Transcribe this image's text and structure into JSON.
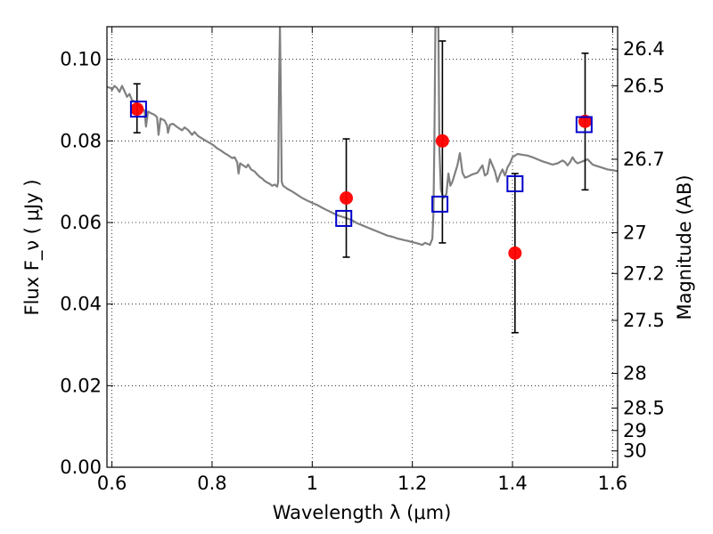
{
  "chart_data": {
    "type": "scatter",
    "xlabel": "Wavelength  λ (μm)",
    "ylabel": "Flux  F_ν ( μJy )",
    "ylabel_right": "Magnitude (AB)",
    "xlim": [
      0.59,
      1.61
    ],
    "ylim": [
      0.0,
      0.108
    ],
    "grid": true,
    "x_ticks": [
      {
        "value": 0.6,
        "label": "0.6"
      },
      {
        "value": 0.8,
        "label": "0.8"
      },
      {
        "value": 1.0,
        "label": "1"
      },
      {
        "value": 1.2,
        "label": "1.2"
      },
      {
        "value": 1.4,
        "label": "1.4"
      },
      {
        "value": 1.6,
        "label": "1.6"
      }
    ],
    "y_ticks": [
      {
        "value": 0.0,
        "label": "0.00"
      },
      {
        "value": 0.02,
        "label": "0.02"
      },
      {
        "value": 0.04,
        "label": "0.04"
      },
      {
        "value": 0.06,
        "label": "0.06"
      },
      {
        "value": 0.08,
        "label": "0.08"
      },
      {
        "value": 0.1,
        "label": "0.10"
      }
    ],
    "right_ticks": [
      {
        "flux": 0.1025,
        "label": "26.4"
      },
      {
        "flux": 0.0935,
        "label": "26.5"
      },
      {
        "flux": 0.0755,
        "label": "26.7"
      },
      {
        "flux": 0.0575,
        "label": "27"
      },
      {
        "flux": 0.0475,
        "label": "27.2"
      },
      {
        "flux": 0.036,
        "label": "27.5"
      },
      {
        "flux": 0.023,
        "label": "28"
      },
      {
        "flux": 0.0145,
        "label": "28.5"
      },
      {
        "flux": 0.009,
        "label": "29"
      },
      {
        "flux": 0.004,
        "label": "30"
      }
    ],
    "observed": {
      "color": "#ff0000",
      "points": [
        {
          "x": 0.65,
          "y": 0.0878,
          "err_low": 0.082,
          "err_high": 0.094
        },
        {
          "x": 1.068,
          "y": 0.066,
          "err_low": 0.0515,
          "err_high": 0.0805
        },
        {
          "x": 1.26,
          "y": 0.08,
          "err_low": 0.055,
          "err_high": 0.1045
        },
        {
          "x": 1.405,
          "y": 0.0525,
          "err_low": 0.033,
          "err_high": 0.072
        },
        {
          "x": 1.545,
          "y": 0.0848,
          "err_low": 0.068,
          "err_high": 0.1015
        }
      ]
    },
    "model_points": {
      "color": "#0000cc",
      "points": [
        {
          "x": 0.653,
          "y": 0.0878
        },
        {
          "x": 1.063,
          "y": 0.061
        },
        {
          "x": 1.255,
          "y": 0.0645
        },
        {
          "x": 1.405,
          "y": 0.0695
        },
        {
          "x": 1.543,
          "y": 0.084
        }
      ]
    },
    "spectrum": {
      "color": "#808080",
      "points": [
        [
          0.59,
          0.0932
        ],
        [
          0.598,
          0.093
        ],
        [
          0.6,
          0.0925
        ],
        [
          0.605,
          0.0935
        ],
        [
          0.61,
          0.093
        ],
        [
          0.615,
          0.092
        ],
        [
          0.62,
          0.0935
        ],
        [
          0.625,
          0.0922
        ],
        [
          0.63,
          0.0908
        ],
        [
          0.635,
          0.0915
        ],
        [
          0.64,
          0.09
        ],
        [
          0.645,
          0.0897
        ],
        [
          0.65,
          0.0893
        ],
        [
          0.655,
          0.0885
        ],
        [
          0.66,
          0.088
        ],
        [
          0.665,
          0.0874
        ],
        [
          0.668,
          0.0835
        ],
        [
          0.672,
          0.0872
        ],
        [
          0.678,
          0.0868
        ],
        [
          0.685,
          0.0864
        ],
        [
          0.69,
          0.0858
        ],
        [
          0.693,
          0.0815
        ],
        [
          0.697,
          0.0855
        ],
        [
          0.705,
          0.085
        ],
        [
          0.71,
          0.0838
        ],
        [
          0.712,
          0.082
        ],
        [
          0.716,
          0.084
        ],
        [
          0.722,
          0.0842
        ],
        [
          0.728,
          0.0836
        ],
        [
          0.735,
          0.083
        ],
        [
          0.74,
          0.0826
        ],
        [
          0.745,
          0.0833
        ],
        [
          0.752,
          0.0827
        ],
        [
          0.76,
          0.0815
        ],
        [
          0.765,
          0.0822
        ],
        [
          0.772,
          0.0812
        ],
        [
          0.78,
          0.0806
        ],
        [
          0.788,
          0.08
        ],
        [
          0.795,
          0.0795
        ],
        [
          0.802,
          0.079
        ],
        [
          0.81,
          0.0782
        ],
        [
          0.818,
          0.0776
        ],
        [
          0.825,
          0.077
        ],
        [
          0.832,
          0.0765
        ],
        [
          0.84,
          0.0758
        ],
        [
          0.845,
          0.076
        ],
        [
          0.85,
          0.0748
        ],
        [
          0.853,
          0.072
        ],
        [
          0.856,
          0.0745
        ],
        [
          0.862,
          0.074
        ],
        [
          0.868,
          0.0735
        ],
        [
          0.872,
          0.0742
        ],
        [
          0.878,
          0.073
        ],
        [
          0.885,
          0.0725
        ],
        [
          0.89,
          0.0718
        ],
        [
          0.895,
          0.0712
        ],
        [
          0.9,
          0.0708
        ],
        [
          0.905,
          0.0702
        ],
        [
          0.91,
          0.0698
        ],
        [
          0.915,
          0.0695
        ],
        [
          0.92,
          0.069
        ],
        [
          0.925,
          0.0693
        ],
        [
          0.93,
          0.0688
        ],
        [
          0.932,
          0.07
        ],
        [
          0.934,
          0.095
        ],
        [
          0.9355,
          0.108
        ],
        [
          0.937,
          0.095
        ],
        [
          0.939,
          0.07
        ],
        [
          0.942,
          0.069
        ],
        [
          0.95,
          0.0683
        ],
        [
          0.96,
          0.0676
        ],
        [
          0.97,
          0.0668
        ],
        [
          0.98,
          0.066
        ],
        [
          0.99,
          0.0654
        ],
        [
          1.0,
          0.0648
        ],
        [
          1.01,
          0.0643
        ],
        [
          1.02,
          0.0636
        ],
        [
          1.03,
          0.063
        ],
        [
          1.04,
          0.0624
        ],
        [
          1.05,
          0.0618
        ],
        [
          1.06,
          0.0614
        ],
        [
          1.07,
          0.061
        ],
        [
          1.08,
          0.0605
        ],
        [
          1.09,
          0.0598
        ],
        [
          1.1,
          0.0593
        ],
        [
          1.11,
          0.0588
        ],
        [
          1.12,
          0.0583
        ],
        [
          1.13,
          0.0578
        ],
        [
          1.14,
          0.0573
        ],
        [
          1.15,
          0.0568
        ],
        [
          1.16,
          0.0565
        ],
        [
          1.17,
          0.0561
        ],
        [
          1.18,
          0.0558
        ],
        [
          1.19,
          0.0555
        ],
        [
          1.2,
          0.0552
        ],
        [
          1.21,
          0.0549
        ],
        [
          1.22,
          0.0545
        ],
        [
          1.225,
          0.055
        ],
        [
          1.23,
          0.0548
        ],
        [
          1.235,
          0.0545
        ],
        [
          1.24,
          0.056
        ],
        [
          1.242,
          0.062
        ],
        [
          1.244,
          0.08
        ],
        [
          1.246,
          0.108
        ],
        [
          1.252,
          0.108
        ],
        [
          1.254,
          0.078
        ],
        [
          1.257,
          0.068
        ],
        [
          1.262,
          0.066
        ],
        [
          1.268,
          0.067
        ],
        [
          1.272,
          0.072
        ],
        [
          1.276,
          0.069
        ],
        [
          1.28,
          0.07
        ],
        [
          1.285,
          0.072
        ],
        [
          1.29,
          0.074
        ],
        [
          1.295,
          0.077
        ],
        [
          1.3,
          0.0722
        ],
        [
          1.305,
          0.071
        ],
        [
          1.31,
          0.0712
        ],
        [
          1.32,
          0.0718
        ],
        [
          1.33,
          0.0722
        ],
        [
          1.34,
          0.074
        ],
        [
          1.345,
          0.0715
        ],
        [
          1.35,
          0.072
        ],
        [
          1.355,
          0.0755
        ],
        [
          1.36,
          0.074
        ],
        [
          1.365,
          0.0725
        ],
        [
          1.37,
          0.07
        ],
        [
          1.375,
          0.0718
        ],
        [
          1.38,
          0.073
        ],
        [
          1.385,
          0.0715
        ],
        [
          1.39,
          0.0735
        ],
        [
          1.395,
          0.0745
        ],
        [
          1.4,
          0.076
        ],
        [
          1.41,
          0.0768
        ],
        [
          1.42,
          0.0766
        ],
        [
          1.43,
          0.0764
        ],
        [
          1.44,
          0.076
        ],
        [
          1.45,
          0.0755
        ],
        [
          1.46,
          0.075
        ],
        [
          1.47,
          0.0746
        ],
        [
          1.48,
          0.0742
        ],
        [
          1.49,
          0.0745
        ],
        [
          1.5,
          0.0752
        ],
        [
          1.505,
          0.0748
        ],
        [
          1.51,
          0.074
        ],
        [
          1.515,
          0.0748
        ],
        [
          1.52,
          0.076
        ],
        [
          1.525,
          0.075
        ],
        [
          1.53,
          0.0745
        ],
        [
          1.54,
          0.075
        ],
        [
          1.55,
          0.0755
        ],
        [
          1.56,
          0.0742
        ],
        [
          1.57,
          0.0738
        ],
        [
          1.58,
          0.0734
        ],
        [
          1.59,
          0.073
        ],
        [
          1.6,
          0.0728
        ],
        [
          1.61,
          0.0726
        ]
      ]
    }
  }
}
